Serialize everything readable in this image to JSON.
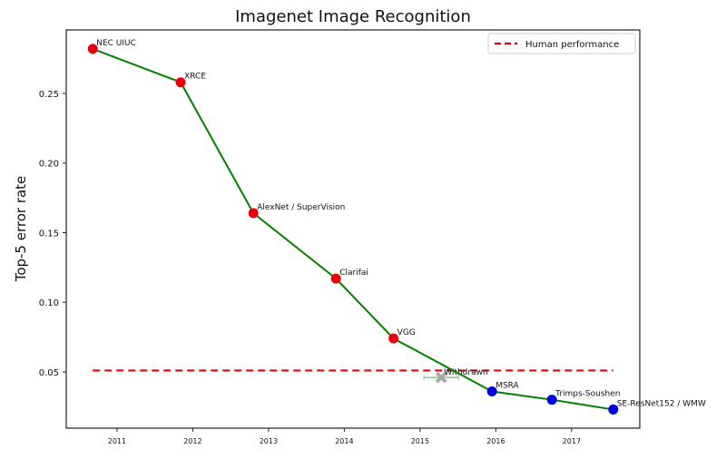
{
  "chart_data": {
    "type": "line",
    "title": "Imagenet Image Recognition",
    "xlabel": "",
    "ylabel": "Top-5 error rate",
    "xlim": [
      2010.33,
      2017.9
    ],
    "ylim": [
      0.0096,
      0.2956
    ],
    "xticks": [
      2011,
      2012,
      2013,
      2014,
      2015,
      2016,
      2017
    ],
    "yticks": [
      0.05,
      0.1,
      0.15,
      0.2,
      0.25
    ],
    "ytick_labels": [
      "0.05",
      "0.10",
      "0.15",
      "0.20",
      "0.25"
    ],
    "grid": false,
    "legend": {
      "placement": "top-right",
      "entries": [
        "Human performance"
      ]
    },
    "line_color": "#008000",
    "points": [
      {
        "label": "NEC UIUC",
        "x": 2010.68,
        "y": 0.282,
        "color": "#e8000b"
      },
      {
        "label": "XRCE",
        "x": 2011.84,
        "y": 0.258,
        "color": "#e8000b"
      },
      {
        "label": "AlexNet / SuperVision",
        "x": 2012.8,
        "y": 0.164,
        "color": "#e8000b"
      },
      {
        "label": "Clarifai",
        "x": 2013.89,
        "y": 0.117,
        "color": "#e8000b"
      },
      {
        "label": "VGG",
        "x": 2014.65,
        "y": 0.074,
        "color": "#e8000b"
      },
      {
        "label": "MSRA",
        "x": 2015.95,
        "y": 0.036,
        "color": "#0000e0"
      },
      {
        "label": "Trimps-Soushen",
        "x": 2016.74,
        "y": 0.03,
        "color": "#0000e0"
      },
      {
        "label": "SE-ResNet152 / WMW",
        "x": 2017.55,
        "y": 0.023,
        "color": "#0000e0"
      }
    ],
    "withdrawn": {
      "label": "Withdrawn",
      "x": 2015.28,
      "y": 0.046,
      "xerr": 0.23,
      "color": "#aaaaaa",
      "errcolor": "#88cc88"
    },
    "human_performance": {
      "name": "Human performance",
      "y": 0.051,
      "x_range": [
        2010.68,
        2017.55
      ],
      "color": "#e8000b"
    }
  }
}
